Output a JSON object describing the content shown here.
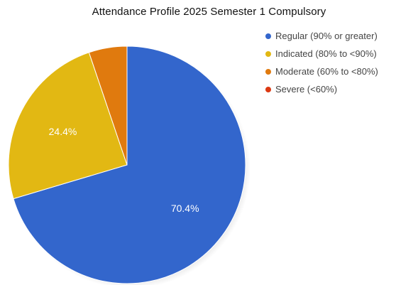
{
  "chart_data": {
    "type": "pie",
    "title": "Attendance Profile 2025 Semester 1 Compulsory",
    "legend_position": "right",
    "slices": [
      {
        "name": "Regular (90% or greater)",
        "value": 70.4,
        "label": "70.4%",
        "color": "#3366cc"
      },
      {
        "name": "Indicated (80% to <90%)",
        "value": 24.4,
        "label": "24.4%",
        "color": "#e2b813"
      },
      {
        "name": "Moderate (60% to <80%)",
        "value": 5.2,
        "label": "",
        "color": "#e07a0e"
      },
      {
        "name": "Severe (<60%)",
        "value": 0,
        "label": "",
        "color": "#dc3912"
      }
    ]
  }
}
